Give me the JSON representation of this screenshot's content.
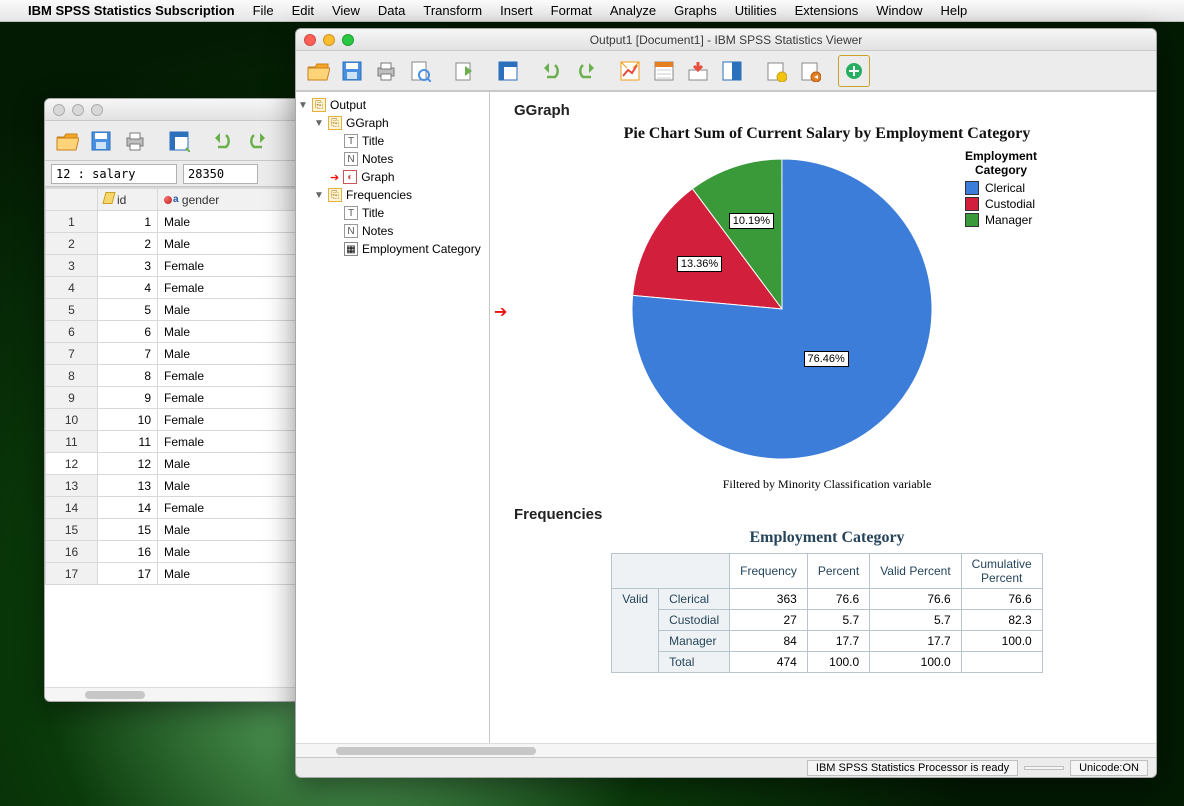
{
  "menubar": {
    "app": "IBM SPSS Statistics Subscription",
    "items": [
      "File",
      "Edit",
      "View",
      "Data",
      "Transform",
      "Insert",
      "Format",
      "Analyze",
      "Graphs",
      "Utilities",
      "Extensions",
      "Window",
      "Help"
    ]
  },
  "data_window": {
    "goto_cell": "12 : salary",
    "goto_value": "28350",
    "columns": [
      "id",
      "gender"
    ],
    "rows": [
      {
        "n": 1,
        "id": 1,
        "gender": "Male"
      },
      {
        "n": 2,
        "id": 2,
        "gender": "Male"
      },
      {
        "n": 3,
        "id": 3,
        "gender": "Female"
      },
      {
        "n": 4,
        "id": 4,
        "gender": "Female"
      },
      {
        "n": 5,
        "id": 5,
        "gender": "Male"
      },
      {
        "n": 6,
        "id": 6,
        "gender": "Male"
      },
      {
        "n": 7,
        "id": 7,
        "gender": "Male"
      },
      {
        "n": 8,
        "id": 8,
        "gender": "Female"
      },
      {
        "n": 9,
        "id": 9,
        "gender": "Female"
      },
      {
        "n": 10,
        "id": 10,
        "gender": "Female"
      },
      {
        "n": 11,
        "id": 11,
        "gender": "Female"
      },
      {
        "n": 12,
        "id": 12,
        "gender": "Male"
      },
      {
        "n": 13,
        "id": 13,
        "gender": "Male"
      },
      {
        "n": 14,
        "id": 14,
        "gender": "Female"
      },
      {
        "n": 15,
        "id": 15,
        "gender": "Male"
      },
      {
        "n": 16,
        "id": 16,
        "gender": "Male"
      },
      {
        "n": 17,
        "id": 17,
        "gender": "Male"
      }
    ]
  },
  "out_window": {
    "title": "Output1 [Document1] - IBM SPSS Statistics Viewer",
    "outline": {
      "root": "Output",
      "ggraph": "GGraph",
      "ggraph_children": [
        "Title",
        "Notes",
        "Graph"
      ],
      "freq": "Frequencies",
      "freq_children": [
        "Title",
        "Notes",
        "Employment Category"
      ]
    },
    "section_ggraph": "GGraph",
    "chart": {
      "type": "pie",
      "title": "Pie Chart Sum of Current Salary by Employment Category",
      "caption": "Filtered by Minority Classification variable",
      "legend_title": "Employment\nCategory",
      "slices": [
        {
          "label": "Clerical",
          "pct": 76.46,
          "pct_str": "76.46%",
          "color": "#3b7dd8"
        },
        {
          "label": "Custodial",
          "pct": 13.36,
          "pct_str": "13.36%",
          "color": "#d21f3c"
        },
        {
          "label": "Manager",
          "pct": 10.19,
          "pct_str": "10.19%",
          "color": "#3a9a3a"
        }
      ],
      "background": "#ffffff",
      "label_bg": "#ffffff",
      "label_border": "#000000",
      "radius": 150
    },
    "section_freq": "Frequencies",
    "freq_table": {
      "title": "Employment Category",
      "columns": [
        "Frequency",
        "Percent",
        "Valid Percent",
        "Cumulative Percent"
      ],
      "group": "Valid",
      "rows": [
        {
          "label": "Clerical",
          "freq": 363,
          "pct": "76.6",
          "vpct": "76.6",
          "cpct": "76.6"
        },
        {
          "label": "Custodial",
          "freq": 27,
          "pct": "5.7",
          "vpct": "5.7",
          "cpct": "82.3"
        },
        {
          "label": "Manager",
          "freq": 84,
          "pct": "17.7",
          "vpct": "17.7",
          "cpct": "100.0"
        },
        {
          "label": "Total",
          "freq": 474,
          "pct": "100.0",
          "vpct": "100.0",
          "cpct": ""
        }
      ]
    },
    "status": {
      "processor": "IBM SPSS Statistics Processor is ready",
      "unicode": "Unicode:ON"
    }
  },
  "toolbar_icons": {
    "open": "#f5a623",
    "save": "#4a90e2",
    "print": "#888",
    "preview": "#4a90e2",
    "export": "#6ab04c",
    "goto": "#2c6fbb",
    "undo": "#6ab04c",
    "redo": "#6ab04c",
    "chart": "#f39c12",
    "pivot": "#e74c3c",
    "insert": "#9b59b6",
    "selectlast": "#16a085",
    "designate": "#f1c40f",
    "script": "#e67e22",
    "add": "#27ae60"
  }
}
